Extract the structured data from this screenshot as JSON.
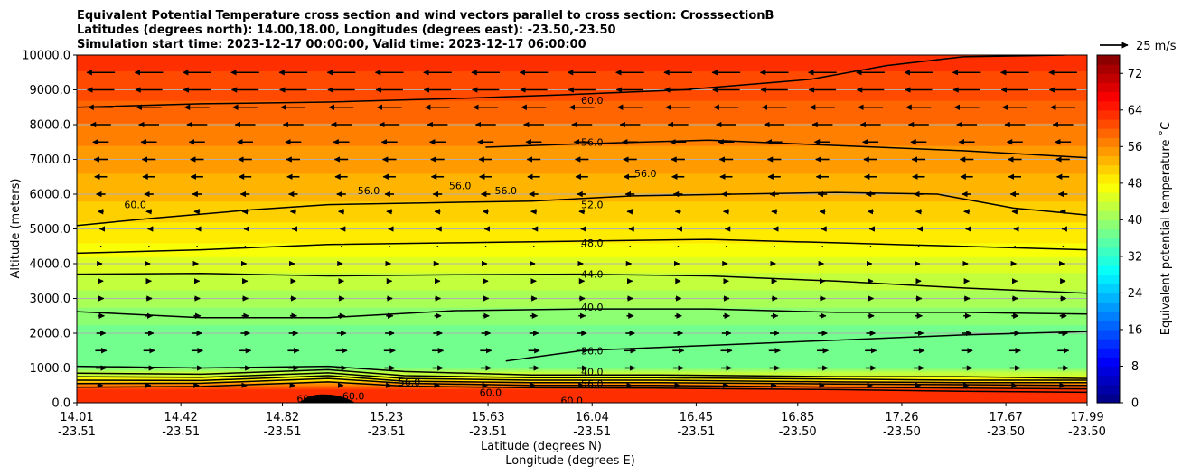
{
  "chart_data": {
    "type": "contour",
    "title_lines": [
      "Equivalent Potential Temperature cross section and wind vectors parallel to cross section: CrosssectionB",
      "Latitudes (degrees north): 14.00,18.00, Longitudes (degrees east): -23.50,-23.50",
      "Simulation start time: 2023-12-17 00:00:00, Valid time: 2023-12-17 06:00:00"
    ],
    "xlabel_lines": [
      "Latitude (degrees N)",
      "Longitude (degrees E)"
    ],
    "ylabel": "Altitude (meters)",
    "x_ticks": [
      {
        "lat": "14.01",
        "lon": "-23.51"
      },
      {
        "lat": "14.42",
        "lon": "-23.51"
      },
      {
        "lat": "14.82",
        "lon": "-23.51"
      },
      {
        "lat": "15.23",
        "lon": "-23.51"
      },
      {
        "lat": "15.63",
        "lon": "-23.51"
      },
      {
        "lat": "16.04",
        "lon": "-23.51"
      },
      {
        "lat": "16.45",
        "lon": "-23.51"
      },
      {
        "lat": "16.85",
        "lon": "-23.50"
      },
      {
        "lat": "17.26",
        "lon": "-23.50"
      },
      {
        "lat": "17.67",
        "lon": "-23.50"
      },
      {
        "lat": "17.99",
        "lon": "-23.50"
      }
    ],
    "x_range": [
      14.01,
      17.99
    ],
    "y_ticks": [
      "0.0",
      "1000.0",
      "2000.0",
      "3000.0",
      "4000.0",
      "5000.0",
      "6000.0",
      "7000.0",
      "8000.0",
      "9000.0",
      "10000.0"
    ],
    "y_range": [
      0,
      10000
    ],
    "grid": "horizontal",
    "colorbar": {
      "label": "Equivalent potential temperature $^\\circ$C",
      "label_text": "Equivalent potential temperature ˚C",
      "range": [
        0,
        76
      ],
      "ticks": [
        "0",
        "8",
        "16",
        "24",
        "32",
        "40",
        "48",
        "56",
        "64",
        "72"
      ],
      "colormap": "jet"
    },
    "quiver_key": {
      "label": "25 m/s",
      "value": 25
    },
    "contour_labels": [
      {
        "text": "60.0",
        "lat": 16.04,
        "alt": 8700
      },
      {
        "text": "56.0",
        "lat": 16.04,
        "alt": 7500
      },
      {
        "text": "56.0",
        "lat": 15.16,
        "alt": 6100
      },
      {
        "text": "56.0",
        "lat": 15.52,
        "alt": 6250
      },
      {
        "text": "56.0",
        "lat": 15.7,
        "alt": 6100
      },
      {
        "text": "56.0",
        "lat": 16.25,
        "alt": 6600
      },
      {
        "text": "52.0",
        "lat": 16.04,
        "alt": 5700
      },
      {
        "text": "60.0",
        "lat": 14.24,
        "alt": 5700
      },
      {
        "text": "48.0",
        "lat": 16.04,
        "alt": 4600
      },
      {
        "text": "44.0",
        "lat": 16.04,
        "alt": 3700
      },
      {
        "text": "40.0",
        "lat": 16.04,
        "alt": 2750
      },
      {
        "text": "36.0",
        "lat": 16.04,
        "alt": 1500
      },
      {
        "text": "40.0",
        "lat": 16.04,
        "alt": 900
      },
      {
        "text": "56.0",
        "lat": 16.04,
        "alt": 550
      },
      {
        "text": "56.0",
        "lat": 15.32,
        "alt": 600
      },
      {
        "text": "60.0",
        "lat": 14.92,
        "alt": 120
      },
      {
        "text": "60.0",
        "lat": 15.1,
        "alt": 200
      },
      {
        "text": "60.0",
        "lat": 15.64,
        "alt": 300
      },
      {
        "text": "60.0",
        "lat": 15.96,
        "alt": 60
      }
    ],
    "contour_lines": [
      {
        "level": 60,
        "points": [
          [
            14.01,
            8500
          ],
          [
            14.5,
            8600
          ],
          [
            15.0,
            8650
          ],
          [
            15.5,
            8750
          ],
          [
            15.9,
            8850
          ],
          [
            16.4,
            9000
          ],
          [
            16.9,
            9300
          ],
          [
            17.2,
            9700
          ],
          [
            17.5,
            9950
          ],
          [
            17.9,
            10000
          ]
        ]
      },
      {
        "level": 56,
        "points": [
          [
            15.62,
            7350
          ],
          [
            16.0,
            7450
          ],
          [
            16.5,
            7550
          ],
          [
            17.0,
            7400
          ],
          [
            17.5,
            7250
          ],
          [
            17.99,
            7050
          ]
        ]
      },
      {
        "level": 52,
        "points": [
          [
            14.01,
            5100
          ],
          [
            14.3,
            5300
          ],
          [
            14.7,
            5550
          ],
          [
            15.0,
            5700
          ],
          [
            15.4,
            5750
          ],
          [
            15.8,
            5800
          ],
          [
            16.2,
            5950
          ],
          [
            16.6,
            6000
          ],
          [
            17.0,
            6050
          ],
          [
            17.4,
            6000
          ],
          [
            17.7,
            5600
          ],
          [
            17.99,
            5400
          ]
        ]
      },
      {
        "level": 48,
        "points": [
          [
            14.01,
            4300
          ],
          [
            14.5,
            4400
          ],
          [
            15.0,
            4550
          ],
          [
            15.5,
            4600
          ],
          [
            16.0,
            4650
          ],
          [
            16.5,
            4700
          ],
          [
            17.0,
            4600
          ],
          [
            17.5,
            4500
          ],
          [
            17.99,
            4400
          ]
        ]
      },
      {
        "level": 44,
        "points": [
          [
            14.01,
            3700
          ],
          [
            14.5,
            3720
          ],
          [
            15.0,
            3650
          ],
          [
            15.5,
            3680
          ],
          [
            16.0,
            3700
          ],
          [
            16.5,
            3650
          ],
          [
            17.0,
            3500
          ],
          [
            17.5,
            3300
          ],
          [
            17.99,
            3150
          ]
        ]
      },
      {
        "level": 40,
        "points": [
          [
            14.01,
            2620
          ],
          [
            14.5,
            2450
          ],
          [
            15.0,
            2450
          ],
          [
            15.5,
            2650
          ],
          [
            16.0,
            2700
          ],
          [
            16.5,
            2700
          ],
          [
            17.0,
            2600
          ],
          [
            17.5,
            2600
          ],
          [
            17.99,
            2550
          ]
        ]
      },
      {
        "level": 36,
        "points": [
          [
            15.7,
            1200
          ],
          [
            16.0,
            1500
          ],
          [
            16.5,
            1650
          ],
          [
            17.0,
            1800
          ],
          [
            17.5,
            1950
          ],
          [
            17.99,
            2050
          ]
        ]
      },
      {
        "level": 40,
        "points": [
          [
            14.01,
            1050
          ],
          [
            14.5,
            1000
          ],
          [
            15.0,
            1050
          ],
          [
            15.3,
            900
          ],
          [
            15.8,
            800
          ],
          [
            16.3,
            800
          ],
          [
            17.0,
            750
          ],
          [
            17.5,
            750
          ],
          [
            17.99,
            700
          ]
        ]
      },
      {
        "level": 44,
        "points": [
          [
            14.01,
            850
          ],
          [
            14.5,
            820
          ],
          [
            15.0,
            950
          ],
          [
            15.3,
            780
          ],
          [
            15.8,
            720
          ],
          [
            16.3,
            720
          ],
          [
            17.0,
            680
          ],
          [
            17.5,
            650
          ],
          [
            17.99,
            650
          ]
        ]
      },
      {
        "level": 48,
        "points": [
          [
            14.01,
            750
          ],
          [
            14.5,
            730
          ],
          [
            15.0,
            860
          ],
          [
            15.3,
            700
          ],
          [
            15.8,
            650
          ],
          [
            16.3,
            650
          ],
          [
            17.0,
            600
          ],
          [
            17.5,
            580
          ],
          [
            17.99,
            580
          ]
        ]
      },
      {
        "level": 52,
        "points": [
          [
            14.01,
            650
          ],
          [
            14.5,
            640
          ],
          [
            15.0,
            780
          ],
          [
            15.3,
            620
          ],
          [
            15.8,
            580
          ],
          [
            16.3,
            580
          ],
          [
            17.0,
            540
          ],
          [
            17.5,
            520
          ],
          [
            17.99,
            500
          ]
        ]
      },
      {
        "level": 56,
        "points": [
          [
            14.01,
            550
          ],
          [
            14.5,
            560
          ],
          [
            15.0,
            700
          ],
          [
            15.3,
            560
          ],
          [
            15.8,
            500
          ],
          [
            16.3,
            500
          ],
          [
            17.0,
            450
          ],
          [
            17.5,
            420
          ],
          [
            17.99,
            400
          ]
        ]
      },
      {
        "level": 60,
        "points": [
          [
            14.01,
            450
          ],
          [
            14.5,
            470
          ],
          [
            15.0,
            600
          ],
          [
            15.3,
            480
          ],
          [
            15.8,
            430
          ],
          [
            16.3,
            420
          ],
          [
            17.0,
            380
          ],
          [
            17.5,
            330
          ],
          [
            17.99,
            300
          ]
        ]
      }
    ],
    "wind_u_profile": [
      {
        "alt": 9500,
        "u": -25
      },
      {
        "alt": 9000,
        "u": -24
      },
      {
        "alt": 8500,
        "u": -22
      },
      {
        "alt": 8000,
        "u": -18
      },
      {
        "alt": 7500,
        "u": -14
      },
      {
        "alt": 7000,
        "u": -12
      },
      {
        "alt": 6500,
        "u": -11
      },
      {
        "alt": 6000,
        "u": -8
      },
      {
        "alt": 5500,
        "u": -5
      },
      {
        "alt": 5000,
        "u": -2
      },
      {
        "alt": 4500,
        "u": 0
      },
      {
        "alt": 4000,
        "u": 2
      },
      {
        "alt": 3500,
        "u": 4
      },
      {
        "alt": 3000,
        "u": 5
      },
      {
        "alt": 2500,
        "u": 6
      },
      {
        "alt": 2000,
        "u": 8
      },
      {
        "alt": 1500,
        "u": 10
      },
      {
        "alt": 1000,
        "u": 9
      },
      {
        "alt": 500,
        "u": 3
      }
    ],
    "field_anchors": [
      {
        "alt": 0,
        "value": 63
      },
      {
        "alt": 350,
        "value": 63
      },
      {
        "alt": 500,
        "value": 58
      },
      {
        "alt": 700,
        "value": 48
      },
      {
        "alt": 1000,
        "value": 38
      },
      {
        "alt": 2000,
        "value": 37
      },
      {
        "alt": 3000,
        "value": 41
      },
      {
        "alt": 4000,
        "value": 45
      },
      {
        "alt": 4600,
        "value": 48
      },
      {
        "alt": 5800,
        "value": 52
      },
      {
        "alt": 7400,
        "value": 56
      },
      {
        "alt": 8700,
        "value": 60
      },
      {
        "alt": 10000,
        "value": 63
      }
    ]
  }
}
